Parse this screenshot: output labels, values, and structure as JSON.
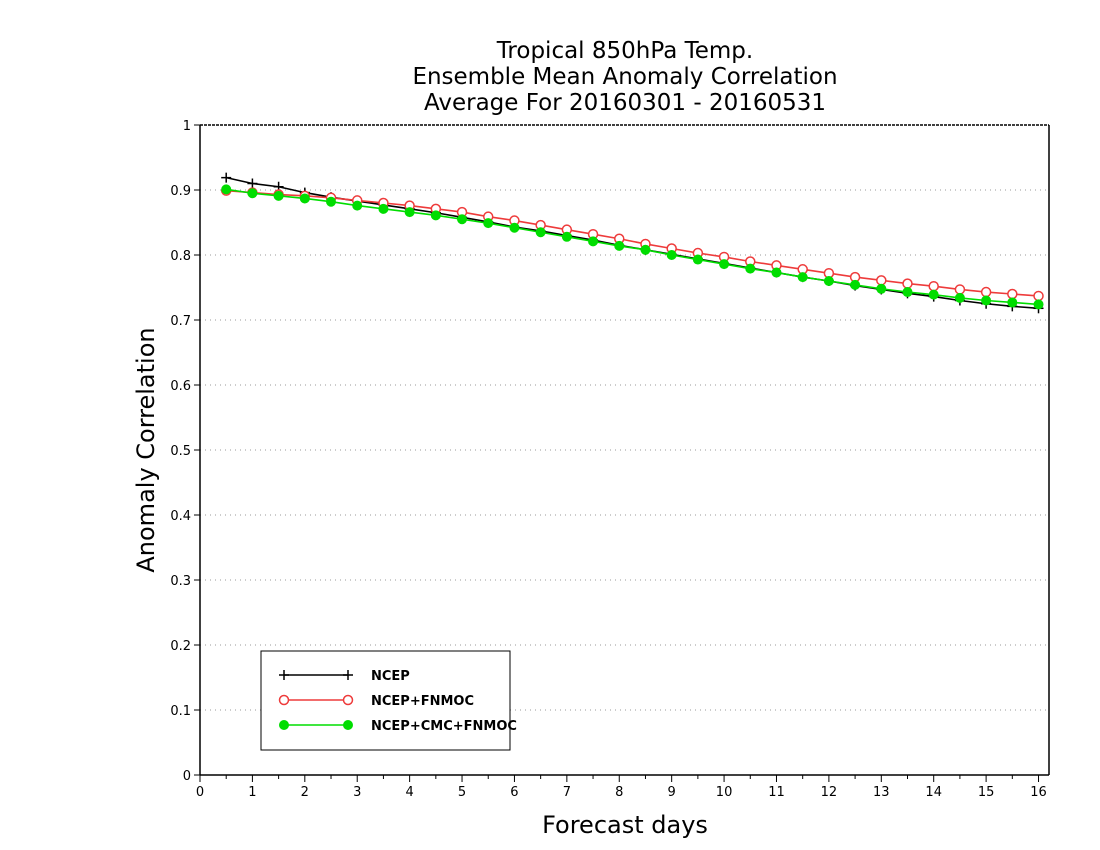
{
  "chart_data": {
    "type": "line",
    "title": [
      "Tropical 850hPa Temp.",
      "Ensemble Mean Anomaly Correlation",
      "Average For 20160301 - 20160531"
    ],
    "xlabel": "Forecast days",
    "ylabel": "Anomaly Correlation",
    "xlim": [
      0,
      16.2
    ],
    "ylim": [
      0,
      1
    ],
    "x_ticks": [
      0,
      1,
      2,
      3,
      4,
      5,
      6,
      7,
      8,
      9,
      10,
      11,
      12,
      13,
      14,
      15,
      16
    ],
    "y_ticks": [
      0,
      0.1,
      0.2,
      0.3,
      0.4,
      0.5,
      0.6,
      0.7,
      0.8,
      0.9,
      1
    ],
    "y_tick_labels": [
      "0",
      "0.1",
      "0.2",
      "0.3",
      "0.4",
      "0.5",
      "0.6",
      "0.7",
      "0.8",
      "0.9",
      "1"
    ],
    "grid": "horizontal dotted",
    "legend_position": "bottom-left",
    "x": [
      0.5,
      1,
      1.5,
      2,
      2.5,
      3,
      3.5,
      4,
      4.5,
      5,
      5.5,
      6,
      6.5,
      7,
      7.5,
      8,
      8.5,
      9,
      9.5,
      10,
      10.5,
      11,
      11.5,
      12,
      12.5,
      13,
      13.5,
      14,
      14.5,
      15,
      15.5,
      16
    ],
    "series": [
      {
        "name": "NCEP",
        "color": "#000000",
        "marker": "plus",
        "values": [
          0.919,
          0.91,
          0.905,
          0.896,
          0.889,
          0.883,
          0.877,
          0.871,
          0.865,
          0.858,
          0.851,
          0.843,
          0.837,
          0.83,
          0.823,
          0.815,
          0.808,
          0.801,
          0.794,
          0.787,
          0.78,
          0.773,
          0.766,
          0.76,
          0.753,
          0.747,
          0.741,
          0.736,
          0.73,
          0.725,
          0.721,
          0.718
        ]
      },
      {
        "name": "NCEP+FNMOC",
        "color": "#ee3b3b",
        "marker": "open-circle",
        "values": [
          0.899,
          0.896,
          0.893,
          0.891,
          0.888,
          0.884,
          0.88,
          0.876,
          0.871,
          0.866,
          0.859,
          0.853,
          0.846,
          0.839,
          0.832,
          0.825,
          0.817,
          0.81,
          0.803,
          0.797,
          0.79,
          0.784,
          0.778,
          0.772,
          0.766,
          0.761,
          0.756,
          0.752,
          0.747,
          0.743,
          0.74,
          0.737
        ]
      },
      {
        "name": "NCEP+CMC+FNMOC",
        "color": "#00dd00",
        "marker": "filled-circle",
        "values": [
          0.901,
          0.895,
          0.891,
          0.887,
          0.882,
          0.876,
          0.871,
          0.866,
          0.861,
          0.855,
          0.849,
          0.842,
          0.835,
          0.828,
          0.821,
          0.814,
          0.808,
          0.8,
          0.793,
          0.786,
          0.779,
          0.773,
          0.766,
          0.76,
          0.754,
          0.748,
          0.743,
          0.739,
          0.734,
          0.73,
          0.727,
          0.724
        ]
      }
    ]
  }
}
